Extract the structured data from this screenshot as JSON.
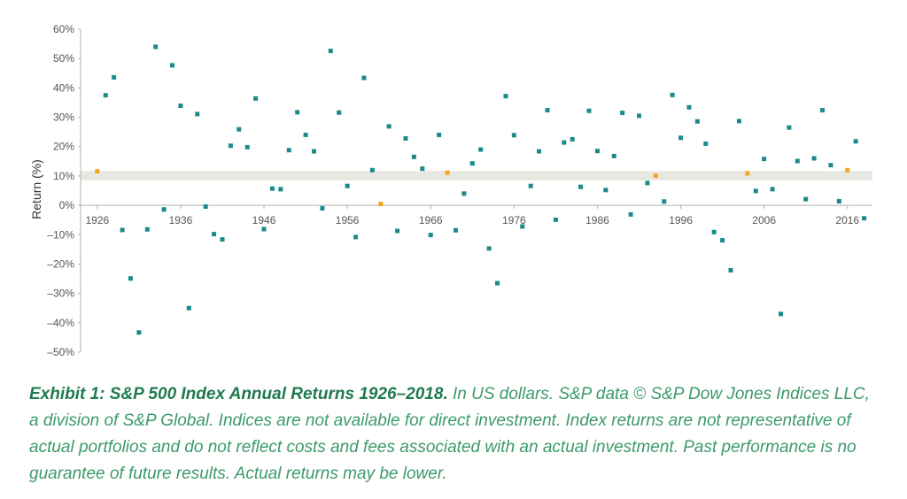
{
  "chart_data": {
    "type": "scatter",
    "ylabel": "Return (%)",
    "xlim": [
      1924,
      2019
    ],
    "ylim": [
      -50,
      60
    ],
    "y_ticks": [
      "60%",
      "50%",
      "40%",
      "30%",
      "20%",
      "10%",
      "0%",
      "–10%",
      "–20%",
      "–30%",
      "–40%",
      "–50%"
    ],
    "x_ticks": [
      "1926",
      "1936",
      "1946",
      "1956",
      "1966",
      "1976",
      "1986",
      "1996",
      "2006",
      "2016"
    ],
    "grid": false,
    "band": {
      "from": 8.5,
      "to": 11.7,
      "color": "#e8e8e3"
    },
    "colors": {
      "normal": "#1a8a8a",
      "highlight": "#f5a623"
    },
    "series": [
      {
        "x": [
          1926,
          1927,
          1928,
          1929,
          1930,
          1931,
          1932,
          1933,
          1934,
          1935,
          1936,
          1937,
          1938,
          1939,
          1940,
          1941,
          1942,
          1943,
          1944,
          1945,
          1946,
          1947,
          1948,
          1949,
          1950,
          1951,
          1952,
          1953,
          1954,
          1955,
          1956,
          1957,
          1958,
          1959,
          1960,
          1961,
          1962,
          1963,
          1964,
          1965,
          1966,
          1967,
          1968,
          1969,
          1970,
          1971,
          1972,
          1973,
          1974,
          1975,
          1976,
          1977,
          1978,
          1979,
          1980,
          1981,
          1982,
          1983,
          1984,
          1985,
          1986,
          1987,
          1988,
          1989,
          1990,
          1991,
          1992,
          1993,
          1994,
          1995,
          1996,
          1997,
          1998,
          1999,
          2000,
          2001,
          2002,
          2003,
          2004,
          2005,
          2006,
          2007,
          2008,
          2009,
          2010,
          2011,
          2012,
          2013,
          2014,
          2015,
          2016,
          2017,
          2018
        ],
        "y": [
          11.6,
          37.5,
          43.6,
          -8.4,
          -24.9,
          -43.3,
          -8.2,
          54.0,
          -1.4,
          47.7,
          33.9,
          -35.0,
          31.1,
          -0.4,
          -9.8,
          -11.6,
          20.3,
          25.9,
          19.8,
          36.4,
          -8.1,
          5.7,
          5.5,
          18.8,
          31.7,
          24.0,
          18.4,
          -1.0,
          52.6,
          31.6,
          6.6,
          -10.8,
          43.4,
          12.0,
          0.5,
          26.9,
          -8.7,
          22.8,
          16.5,
          12.5,
          -10.1,
          24.0,
          11.1,
          -8.5,
          4.0,
          14.3,
          19.0,
          -14.7,
          -26.5,
          37.2,
          23.9,
          -7.2,
          6.6,
          18.4,
          32.4,
          -4.9,
          21.4,
          22.5,
          6.3,
          32.2,
          18.5,
          5.2,
          16.8,
          31.5,
          -3.1,
          30.5,
          7.6,
          10.1,
          1.3,
          37.6,
          23.0,
          33.4,
          28.6,
          21.0,
          -9.1,
          -11.9,
          -22.1,
          28.7,
          10.9,
          4.9,
          15.8,
          5.5,
          -37.0,
          26.5,
          15.1,
          2.1,
          16.0,
          32.4,
          13.7,
          1.4,
          12.0,
          21.8,
          -4.4
        ],
        "highlight_years": [
          1926,
          1960,
          1968,
          1993,
          2004,
          2016
        ]
      }
    ]
  },
  "caption": {
    "exhibit": "Exhibit 1: S&P 500 Index Annual Returns 1926–2018.",
    "text": " In US dollars. S&P data © S&P Dow Jones Indices LLC, a division of S&P Global. Indices are not available for direct investment. Index returns are not representative of actual portfolios and do not reflect costs and fees associated with an actual investment. Past performance is no guarantee of future results. Actual returns may be lower."
  }
}
